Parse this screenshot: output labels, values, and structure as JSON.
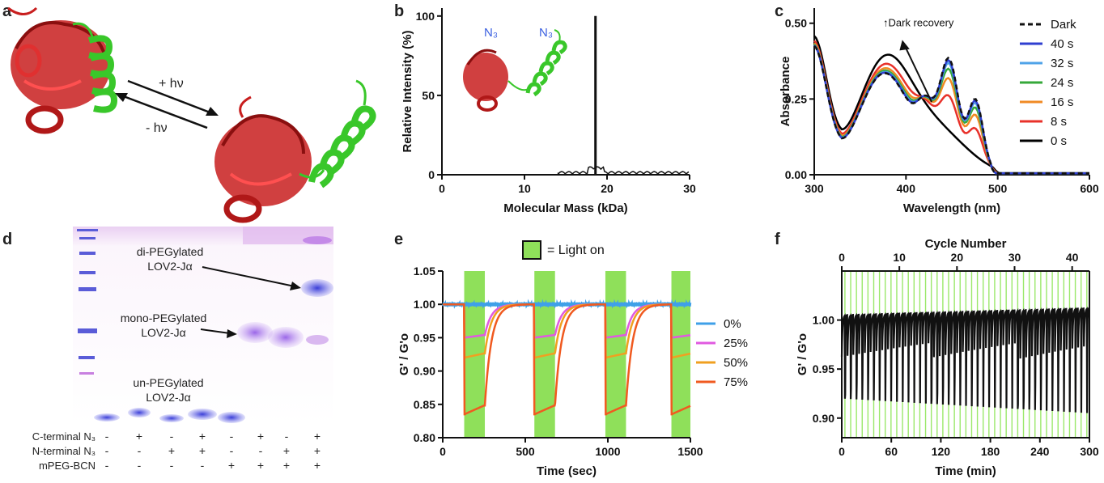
{
  "panels": {
    "a": "a",
    "b": "b",
    "c": "c",
    "d": "d",
    "e": "e",
    "f": "f"
  },
  "panel_a": {
    "forward": "+ hν",
    "reverse": "- hν"
  },
  "panel_b": {
    "n3_left": "N₃",
    "n3_right": "N₃"
  },
  "panel_c": {
    "annotation": "↑Dark recovery"
  },
  "panel_d": {
    "di_label": [
      "di-PEGylated",
      "LOV2-Jα"
    ],
    "mono_label": [
      "mono-PEGylated",
      "LOV2-Jα"
    ],
    "un_label": [
      "un-PEGylated",
      "LOV2-Jα"
    ],
    "rows": [
      {
        "label": "C-terminal N₃",
        "signs": [
          "-",
          "+",
          "-",
          "+",
          "-",
          "+",
          "-",
          "+"
        ]
      },
      {
        "label": "N-terminal N₃",
        "signs": [
          "-",
          "-",
          "+",
          "+",
          "-",
          "-",
          "+",
          "+"
        ]
      },
      {
        "label": "mPEG-BCN",
        "signs": [
          "-",
          "-",
          "-",
          "-",
          "+",
          "+",
          "+",
          "+"
        ]
      }
    ]
  },
  "panel_e": {
    "light_legend": "= Light on",
    "light_color": "#8fe05a"
  },
  "panel_f": {
    "top_axis_label": "Cycle Number"
  },
  "chart_data": [
    {
      "id": "b",
      "type": "bar",
      "xlabel": "Molecular Mass (kDa)",
      "ylabel": "Relative Intensity (%)",
      "xlim": [
        0,
        30
      ],
      "ylim": [
        0,
        105
      ],
      "xticks": [
        0,
        10,
        20,
        30
      ],
      "yticks": [
        0,
        50,
        100
      ],
      "peaks": [
        {
          "x": 18.6,
          "y": 100
        }
      ],
      "baseline_noise_range": [
        14,
        30
      ]
    },
    {
      "id": "c",
      "type": "line",
      "xlabel": "Wavelength (nm)",
      "ylabel": "Absorbance",
      "xlim": [
        300,
        600
      ],
      "ylim": [
        0,
        0.55
      ],
      "xticks": [
        300,
        400,
        500,
        600
      ],
      "yticks": [
        "0.00",
        "0.25",
        "0.50"
      ],
      "legend_position": "right",
      "series": [
        {
          "name": "Dark",
          "color": "#111111",
          "dash": true,
          "scale": 1.0
        },
        {
          "name": "40 s",
          "color": "#2f3fd0",
          "scale": 0.97
        },
        {
          "name": "32 s",
          "color": "#4fa3e8",
          "scale": 0.93
        },
        {
          "name": "24 s",
          "color": "#35a83a",
          "scale": 0.85
        },
        {
          "name": "16 s",
          "color": "#f08a24",
          "scale": 0.72
        },
        {
          "name": "8 s",
          "color": "#e8312a",
          "scale": 0.48
        },
        {
          "name": "0 s",
          "color": "#000000",
          "scale": 0.0
        }
      ]
    },
    {
      "id": "e",
      "type": "line",
      "xlabel": "Time (sec)",
      "ylabel": "G' / G'o",
      "xlim": [
        0,
        1500
      ],
      "ylim": [
        0.8,
        1.05
      ],
      "xticks": [
        0,
        500,
        1000,
        1500
      ],
      "yticks": [
        "0.80",
        "0.85",
        "0.90",
        "0.95",
        "1.00",
        "1.05"
      ],
      "light_on_intervals": [
        [
          130,
          255
        ],
        [
          555,
          680
        ],
        [
          985,
          1110
        ],
        [
          1385,
          1500
        ]
      ],
      "legend_position": "right",
      "series": [
        {
          "name": "0%",
          "color": "#3fa0e8",
          "min": 1.0
        },
        {
          "name": "25%",
          "color": "#e05ae0",
          "min": 0.95
        },
        {
          "name": "50%",
          "color": "#f0a020",
          "min": 0.92
        },
        {
          "name": "75%",
          "color": "#f05a20",
          "min": 0.835
        }
      ]
    },
    {
      "id": "f",
      "type": "line",
      "xlabel": "Time (min)",
      "ylabel": "G' / G'o",
      "xlim": [
        0,
        300
      ],
      "ylim": [
        0.88,
        1.05
      ],
      "xticks": [
        0,
        60,
        120,
        180,
        240,
        300
      ],
      "yticks": [
        "0.90",
        "0.95",
        "1.00"
      ],
      "top_xticks": [
        0,
        10,
        20,
        30,
        40
      ],
      "cycles": 43,
      "max_start": 1.005,
      "max_end": 1.012,
      "min_start": 0.92,
      "min_end": 0.905
    }
  ]
}
